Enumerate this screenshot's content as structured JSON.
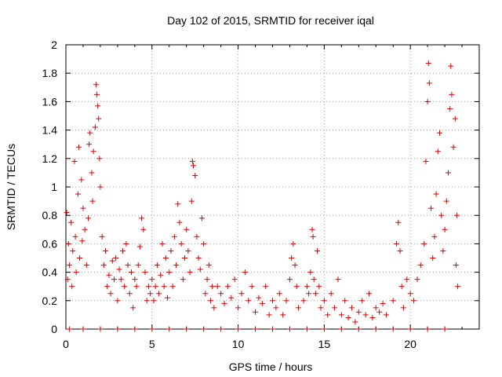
{
  "chart_data": {
    "type": "scatter",
    "title": "Day 102 of 2015, SRMTID for receiver iqal",
    "xlabel": "GPS time / hours",
    "ylabel": "SRMTID / TECUs",
    "xlim": [
      0,
      24
    ],
    "ylim": [
      0,
      2
    ],
    "x_ticks": [
      {
        "value": 0,
        "label": "0"
      },
      {
        "value": 5,
        "label": "5"
      },
      {
        "value": 10,
        "label": "10"
      },
      {
        "value": 15,
        "label": "15"
      },
      {
        "value": 20,
        "label": "20"
      }
    ],
    "y_ticks": [
      {
        "value": 0,
        "label": "0"
      },
      {
        "value": 0.2,
        "label": "0.2"
      },
      {
        "value": 0.4,
        "label": "0.4"
      },
      {
        "value": 0.6,
        "label": "0.6"
      },
      {
        "value": 0.8,
        "label": "0.8"
      },
      {
        "value": 1,
        "label": "1"
      },
      {
        "value": 1.2,
        "label": "1.2"
      },
      {
        "value": 1.4,
        "label": "1.4"
      },
      {
        "value": 1.6,
        "label": "1.6"
      },
      {
        "value": 1.8,
        "label": "1.8"
      },
      {
        "value": 2,
        "label": "2"
      }
    ],
    "grid": true,
    "marker": "+",
    "series": [
      {
        "name": "SRMTID",
        "color": "#dd0000",
        "points": [
          [
            0.05,
            0.82
          ],
          [
            0.1,
            0.35
          ],
          [
            0.15,
            0.6
          ],
          [
            0.2,
            0.45
          ],
          [
            0.3,
            0.75
          ],
          [
            0.35,
            0.3
          ],
          [
            0.4,
            0.55
          ],
          [
            0.5,
            1.18
          ],
          [
            0.55,
            0.65
          ],
          [
            0.6,
            0.4
          ],
          [
            0.7,
            0.95
          ],
          [
            0.75,
            1.28
          ],
          [
            0.8,
            0.5
          ],
          [
            0.9,
            1.05
          ],
          [
            0.95,
            0.62
          ],
          [
            1.0,
            0.85
          ],
          [
            1.1,
            0.7
          ],
          [
            1.2,
            0.45
          ],
          [
            1.3,
            0.78
          ],
          [
            1.35,
            1.3
          ],
          [
            1.4,
            1.38
          ],
          [
            1.5,
            1.1
          ],
          [
            1.55,
            0.9
          ],
          [
            1.6,
            1.25
          ],
          [
            1.7,
            1.42
          ],
          [
            1.75,
            1.72
          ],
          [
            1.8,
            1.65
          ],
          [
            1.85,
            1.57
          ],
          [
            1.9,
            1.48
          ],
          [
            1.95,
            1.2
          ],
          [
            2.0,
            1.0
          ],
          [
            2.1,
            0.65
          ],
          [
            2.2,
            0.45
          ],
          [
            2.3,
            0.55
          ],
          [
            2.4,
            0.3
          ],
          [
            2.5,
            0.38
          ],
          [
            2.6,
            0.25
          ],
          [
            2.7,
            0.48
          ],
          [
            2.8,
            0.35
          ],
          [
            2.9,
            0.5
          ],
          [
            3.0,
            0.2
          ],
          [
            3.1,
            0.42
          ],
          [
            3.2,
            0.35
          ],
          [
            3.3,
            0.55
          ],
          [
            3.4,
            0.3
          ],
          [
            3.5,
            0.6
          ],
          [
            3.6,
            0.45
          ],
          [
            3.7,
            0.25
          ],
          [
            3.8,
            0.4
          ],
          [
            3.9,
            0.15
          ],
          [
            4.0,
            0.35
          ],
          [
            4.1,
            0.3
          ],
          [
            4.2,
            0.45
          ],
          [
            4.3,
            0.58
          ],
          [
            4.4,
            0.78
          ],
          [
            4.5,
            0.7
          ],
          [
            4.6,
            0.4
          ],
          [
            4.7,
            0.2
          ],
          [
            4.8,
            0.3
          ],
          [
            4.9,
            0.25
          ],
          [
            5.0,
            0.35
          ],
          [
            5.1,
            0.2
          ],
          [
            5.2,
            0.3
          ],
          [
            5.3,
            0.45
          ],
          [
            5.4,
            0.25
          ],
          [
            5.5,
            0.38
          ],
          [
            5.6,
            0.6
          ],
          [
            5.7,
            0.3
          ],
          [
            5.8,
            0.5
          ],
          [
            5.9,
            0.22
          ],
          [
            6.0,
            0.4
          ],
          [
            6.1,
            0.55
          ],
          [
            6.2,
            0.3
          ],
          [
            6.3,
            0.65
          ],
          [
            6.4,
            0.45
          ],
          [
            6.5,
            0.88
          ],
          [
            6.6,
            0.75
          ],
          [
            6.7,
            0.6
          ],
          [
            6.8,
            0.35
          ],
          [
            6.9,
            0.5
          ],
          [
            7.0,
            0.7
          ],
          [
            7.1,
            0.55
          ],
          [
            7.2,
            0.4
          ],
          [
            7.3,
            0.9
          ],
          [
            7.35,
            1.18
          ],
          [
            7.4,
            1.15
          ],
          [
            7.5,
            1.08
          ],
          [
            7.6,
            0.65
          ],
          [
            7.7,
            0.5
          ],
          [
            7.8,
            0.42
          ],
          [
            7.9,
            0.78
          ],
          [
            8.0,
            0.6
          ],
          [
            8.1,
            0.25
          ],
          [
            8.2,
            0.35
          ],
          [
            8.3,
            0.45
          ],
          [
            8.4,
            0.2
          ],
          [
            8.5,
            0.3
          ],
          [
            8.6,
            0.15
          ],
          [
            8.8,
            0.3
          ],
          [
            9.0,
            0.25
          ],
          [
            9.2,
            0.18
          ],
          [
            9.4,
            0.3
          ],
          [
            9.6,
            0.22
          ],
          [
            9.8,
            0.35
          ],
          [
            10.0,
            0.15
          ],
          [
            10.2,
            0.25
          ],
          [
            10.4,
            0.4
          ],
          [
            10.6,
            0.2
          ],
          [
            10.8,
            0.3
          ],
          [
            11.0,
            0.12
          ],
          [
            11.2,
            0.22
          ],
          [
            11.4,
            0.18
          ],
          [
            11.6,
            0.3
          ],
          [
            11.8,
            0.1
          ],
          [
            12.0,
            0.2
          ],
          [
            12.2,
            0.15
          ],
          [
            12.4,
            0.25
          ],
          [
            12.6,
            0.1
          ],
          [
            12.8,
            0.2
          ],
          [
            13.0,
            0.35
          ],
          [
            13.1,
            0.5
          ],
          [
            13.2,
            0.6
          ],
          [
            13.3,
            0.45
          ],
          [
            13.4,
            0.3
          ],
          [
            13.5,
            0.15
          ],
          [
            13.8,
            0.2
          ],
          [
            14.0,
            0.3
          ],
          [
            14.1,
            0.25
          ],
          [
            14.2,
            0.4
          ],
          [
            14.3,
            0.7
          ],
          [
            14.35,
            0.65
          ],
          [
            14.4,
            0.35
          ],
          [
            14.5,
            0.25
          ],
          [
            14.6,
            0.55
          ],
          [
            14.7,
            0.3
          ],
          [
            14.8,
            0.15
          ],
          [
            15.0,
            0.2
          ],
          [
            15.2,
            0.1
          ],
          [
            15.4,
            0.25
          ],
          [
            15.6,
            0.15
          ],
          [
            15.8,
            0.35
          ],
          [
            16.0,
            0.1
          ],
          [
            16.2,
            0.2
          ],
          [
            16.4,
            0.08
          ],
          [
            16.6,
            0.15
          ],
          [
            16.8,
            0.05
          ],
          [
            17.0,
            0.12
          ],
          [
            17.2,
            0.2
          ],
          [
            17.4,
            0.1
          ],
          [
            17.6,
            0.25
          ],
          [
            17.8,
            0.08
          ],
          [
            18.0,
            0.15
          ],
          [
            18.2,
            0.12
          ],
          [
            18.4,
            0.18
          ],
          [
            18.6,
            0.1
          ],
          [
            19.0,
            0.2
          ],
          [
            19.2,
            0.6
          ],
          [
            19.3,
            0.75
          ],
          [
            19.4,
            0.55
          ],
          [
            19.5,
            0.3
          ],
          [
            19.6,
            0.15
          ],
          [
            19.8,
            0.35
          ],
          [
            20.0,
            0.25
          ],
          [
            20.2,
            0.2
          ],
          [
            20.4,
            0.35
          ],
          [
            20.6,
            0.45
          ],
          [
            20.8,
            0.6
          ],
          [
            20.9,
            1.18
          ],
          [
            21.0,
            1.6
          ],
          [
            21.05,
            1.87
          ],
          [
            21.1,
            1.73
          ],
          [
            21.2,
            0.85
          ],
          [
            21.3,
            0.5
          ],
          [
            21.4,
            0.65
          ],
          [
            21.5,
            0.95
          ],
          [
            21.6,
            1.25
          ],
          [
            21.7,
            1.38
          ],
          [
            21.8,
            0.8
          ],
          [
            21.9,
            0.55
          ],
          [
            22.0,
            0.7
          ],
          [
            22.1,
            0.9
          ],
          [
            22.2,
            1.1
          ],
          [
            22.3,
            1.55
          ],
          [
            22.35,
            1.85
          ],
          [
            22.4,
            1.65
          ],
          [
            22.5,
            1.28
          ],
          [
            22.6,
            1.48
          ],
          [
            22.65,
            0.45
          ],
          [
            22.7,
            0.8
          ],
          [
            22.75,
            0.3
          ],
          [
            0.2,
            0
          ],
          [
            1.0,
            0
          ],
          [
            2.0,
            0
          ],
          [
            3.0,
            0
          ],
          [
            4.0,
            0
          ],
          [
            5.0,
            0
          ],
          [
            6.0,
            0
          ],
          [
            7.0,
            0
          ],
          [
            8.0,
            0
          ],
          [
            9.0,
            0
          ],
          [
            10.0,
            0
          ],
          [
            11.0,
            0
          ],
          [
            12.0,
            0
          ],
          [
            13.0,
            0
          ],
          [
            14.0,
            0
          ],
          [
            15.0,
            0
          ],
          [
            16.0,
            0
          ],
          [
            17.0,
            0
          ],
          [
            18.0,
            0
          ],
          [
            19.0,
            0
          ],
          [
            20.0,
            0
          ],
          [
            21.0,
            0
          ],
          [
            22.0,
            0
          ]
        ]
      }
    ]
  }
}
